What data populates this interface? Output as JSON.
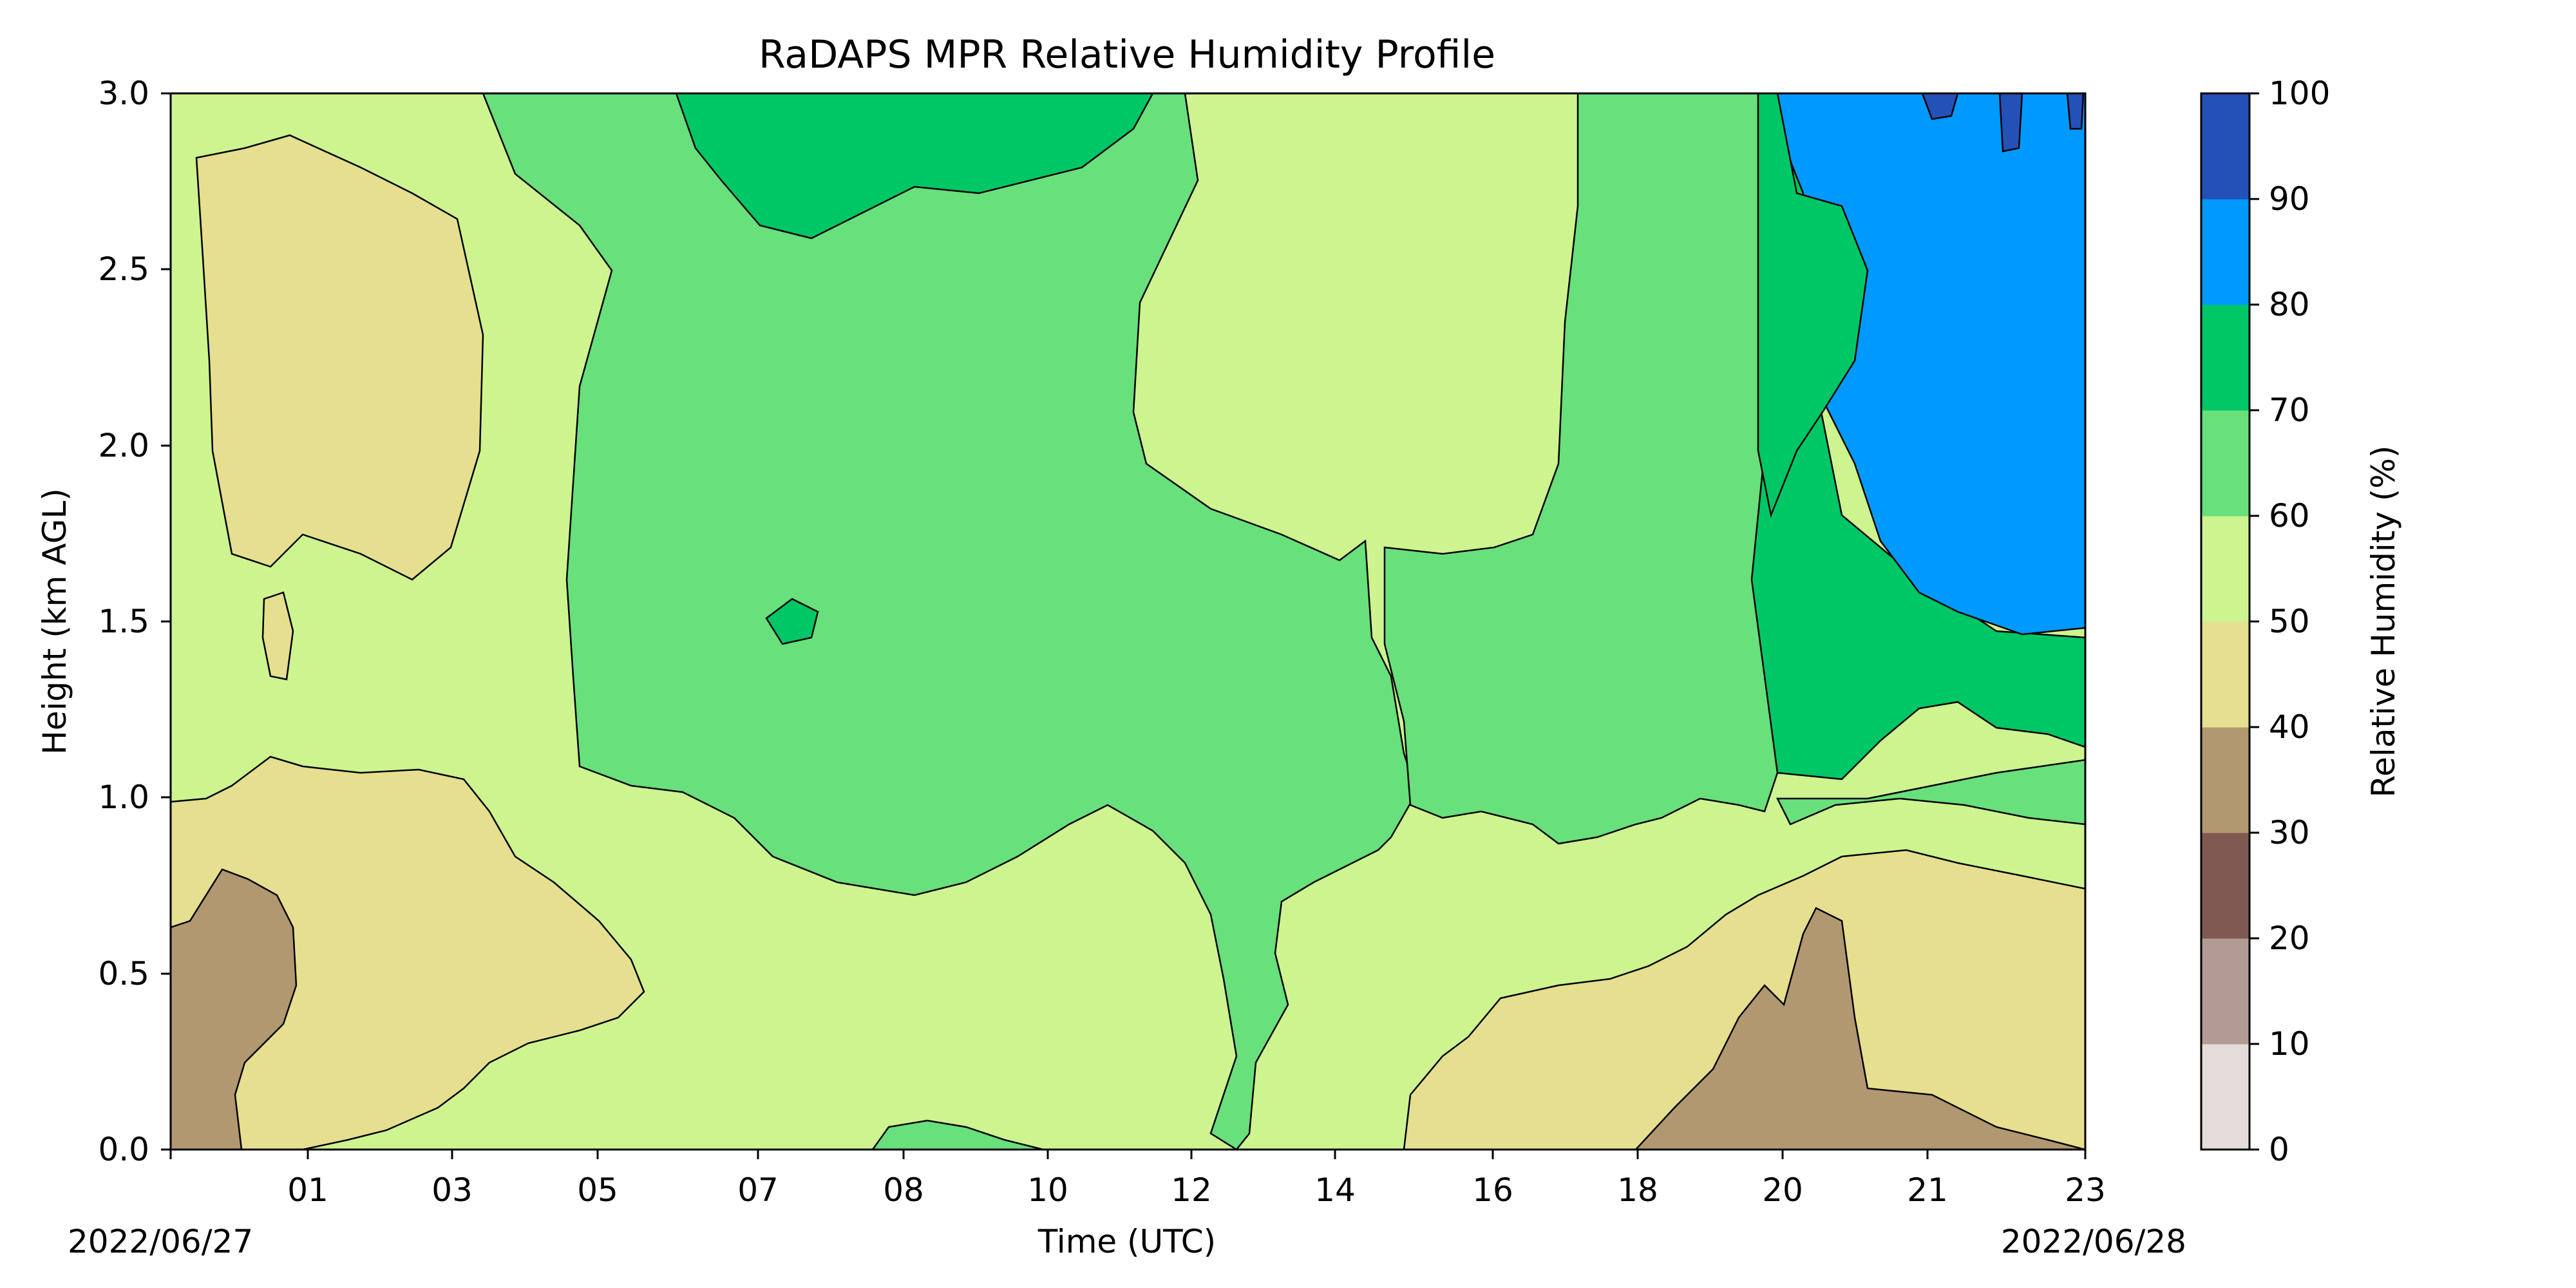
{
  "chart_data": {
    "type": "contour",
    "title": "RaDAPS MPR Relative Humidity Profile",
    "xlabel": "Time (UTC)",
    "ylabel": "Height (km AGL)",
    "x_ticks": [
      "01",
      "03",
      "05",
      "07",
      "08",
      "10",
      "12",
      "14",
      "16",
      "18",
      "20",
      "21",
      "23"
    ],
    "x_start_label": "2022/06/27",
    "x_end_label": "2022/06/28",
    "y_ticks": [
      "0.0",
      "0.5",
      "1.0",
      "1.5",
      "2.0",
      "2.5",
      "3.0"
    ],
    "ylim": [
      0,
      3
    ],
    "colorbar": {
      "label": "Relative Humidity (%)",
      "ticks": [
        "0",
        "10",
        "20",
        "30",
        "40",
        "50",
        "60",
        "70",
        "80",
        "90",
        "100"
      ],
      "levels": [
        0,
        10,
        20,
        30,
        40,
        50,
        60,
        70,
        80,
        90,
        100
      ],
      "colors": [
        "#e4dcd8",
        "#b29b93",
        "#805a52",
        "#b29870",
        "#e5df8f",
        "#cdf48f",
        "#68e07b",
        "#00c765",
        "#0099fd",
        "#2451b8"
      ]
    },
    "grid": false,
    "legend": "colorbar-right"
  }
}
